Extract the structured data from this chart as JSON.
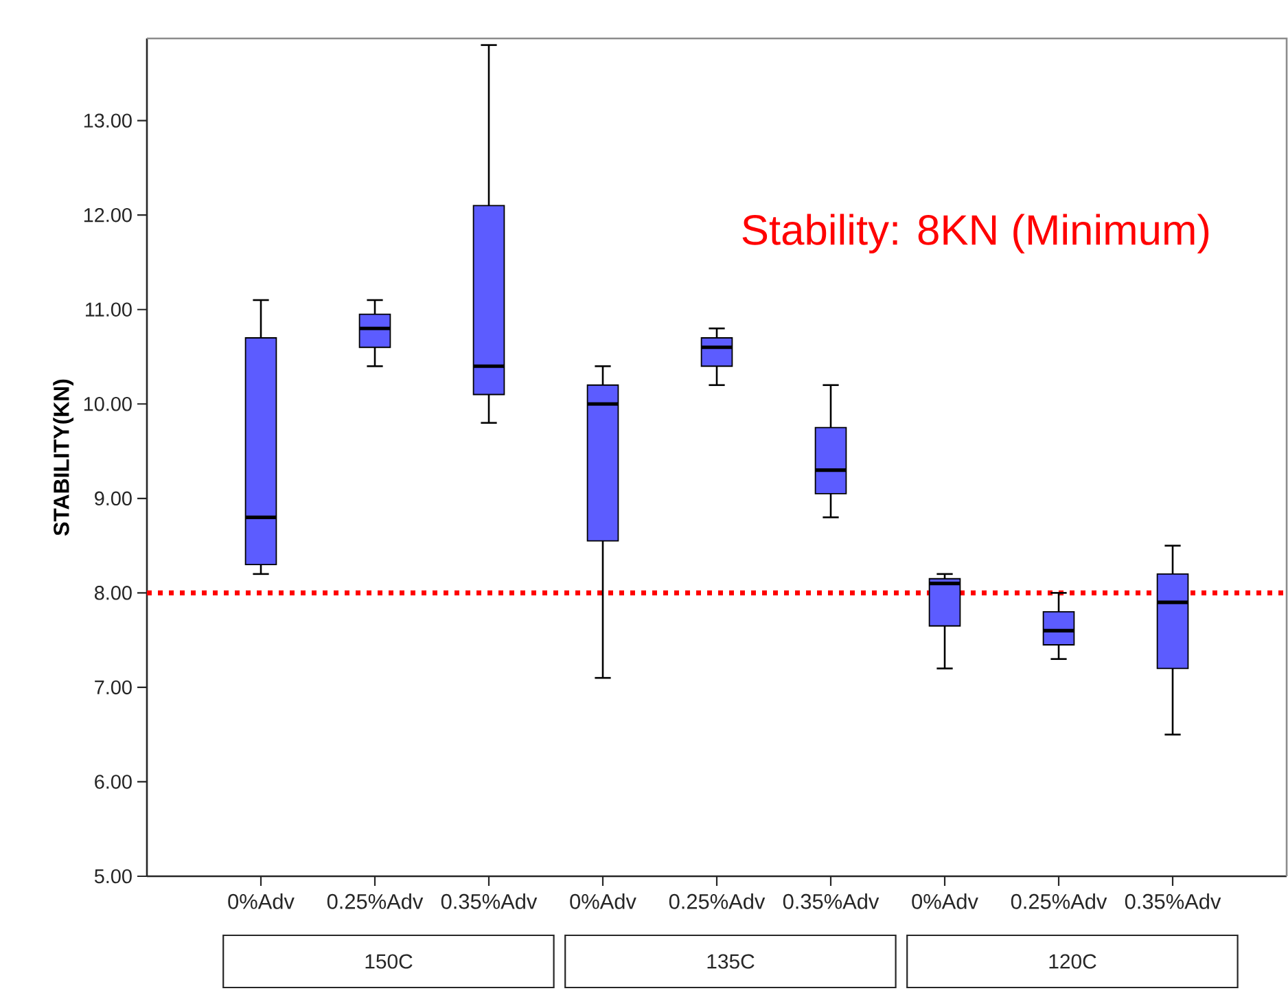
{
  "chart_data": {
    "type": "box",
    "ylabel": "STABILITY(KN)",
    "categories": [
      "0%Adv",
      "0.25%Adv",
      "0.35%Adv",
      "0%Adv",
      "0.25%Adv",
      "0.35%Adv",
      "0%Adv",
      "0.25%Adv",
      "0.35%Adv"
    ],
    "color": "#5c5cff",
    "boxes": [
      {
        "low": 8.2,
        "q1": 8.3,
        "median": 8.8,
        "q3": 10.7,
        "high": 11.1
      },
      {
        "low": 10.4,
        "q1": 10.6,
        "median": 10.8,
        "q3": 10.95,
        "high": 11.1
      },
      {
        "low": 9.8,
        "q1": 10.1,
        "median": 10.4,
        "q3": 12.1,
        "high": 13.8
      },
      {
        "low": 7.1,
        "q1": 8.55,
        "median": 10.0,
        "q3": 10.2,
        "high": 10.4
      },
      {
        "low": 10.2,
        "q1": 10.4,
        "median": 10.6,
        "q3": 10.7,
        "high": 10.8
      },
      {
        "low": 8.8,
        "q1": 9.05,
        "median": 9.3,
        "q3": 9.75,
        "high": 10.2
      },
      {
        "low": 7.2,
        "q1": 7.65,
        "median": 8.1,
        "q3": 8.15,
        "high": 8.2
      },
      {
        "low": 7.3,
        "q1": 7.45,
        "median": 7.6,
        "q3": 7.8,
        "high": 8.0
      },
      {
        "low": 6.5,
        "q1": 7.2,
        "median": 7.9,
        "q3": 8.2,
        "high": 8.5
      }
    ],
    "ylim": [
      5,
      13.87
    ],
    "yticks": [
      {
        "value": 5,
        "label": "5.00"
      },
      {
        "value": 6,
        "label": "6.00"
      },
      {
        "value": 7,
        "label": "7.00"
      },
      {
        "value": 8,
        "label": "8.00"
      },
      {
        "value": 9,
        "label": "9.00"
      },
      {
        "value": 10,
        "label": "10.00"
      },
      {
        "value": 11,
        "label": "11.00"
      },
      {
        "value": 12,
        "label": "12.00"
      },
      {
        "value": 13,
        "label": "13.00"
      }
    ],
    "ref_lines": [
      {
        "axis": "y",
        "value": 8,
        "label": "Stability: 8KN (Minimum)",
        "color": "#ff0000",
        "line_style": "dotted"
      }
    ],
    "annotations": [
      "150C",
      "135C",
      "120C"
    ]
  }
}
